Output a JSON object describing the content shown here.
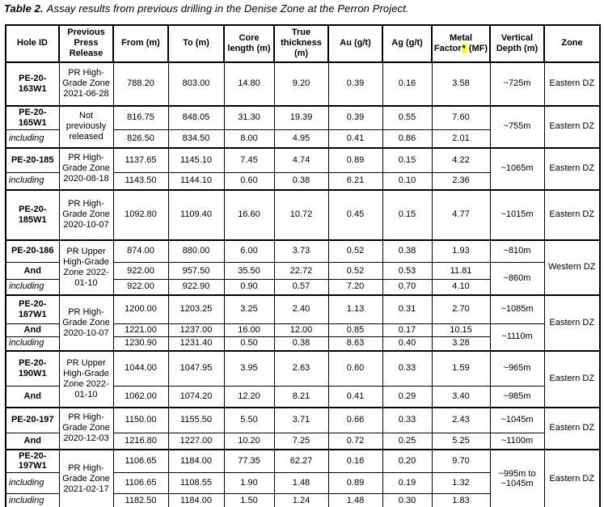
{
  "title": {
    "label": "Table 2.",
    "text": "Assay results from previous drilling in the Denise Zone at the Perron Project."
  },
  "table": {
    "highlight_color": "#ffff00",
    "headers": [
      "Hole ID",
      "Previous Press Release",
      "From (m)",
      "To (m)",
      "Core length (m)",
      "True thickness (m)",
      "Au (g/t)",
      "Ag (g/t)",
      {
        "label": "Metal Factor",
        "star": "*",
        "unit": "(MF)"
      },
      "Vertical Depth (m)",
      "Zone"
    ],
    "rows": [
      {
        "group": true,
        "h": 54,
        "cells": [
          {
            "t": "PE-20-163W1",
            "k": "hole"
          },
          {
            "t": "PR High-Grade Zone 2021-06-28",
            "k": "pr"
          },
          {
            "t": "788.20",
            "k": "num"
          },
          {
            "t": "803.00",
            "k": "num"
          },
          {
            "t": "14.80",
            "k": "num"
          },
          {
            "t": "9.20",
            "k": "num"
          },
          {
            "t": "0.39",
            "k": "num"
          },
          {
            "t": "0.16",
            "k": "num"
          },
          {
            "t": "3.58",
            "k": "num"
          },
          {
            "t": "~725m",
            "k": "depth"
          },
          {
            "t": "Eastern DZ",
            "k": "zone"
          }
        ]
      },
      {
        "group": true,
        "h": 30,
        "cells": [
          {
            "t": "PE-20-165W1",
            "k": "hole"
          },
          {
            "t": "Not previously released",
            "k": "pr",
            "rs": 2
          },
          {
            "t": "816.75",
            "k": "num"
          },
          {
            "t": "848.05",
            "k": "num"
          },
          {
            "t": "31.30",
            "k": "num"
          },
          {
            "t": "19.39",
            "k": "num"
          },
          {
            "t": "0.39",
            "k": "num"
          },
          {
            "t": "0.55",
            "k": "num"
          },
          {
            "t": "7.60",
            "k": "num"
          },
          {
            "t": "~755m",
            "k": "depth",
            "rs": 2
          },
          {
            "t": "Eastern DZ",
            "k": "zone",
            "rs": 2
          }
        ]
      },
      {
        "group": false,
        "h": 22,
        "cells": [
          {
            "t": "including",
            "k": "incl"
          },
          {
            "t": "826.50",
            "k": "num"
          },
          {
            "t": "834.50",
            "k": "num"
          },
          {
            "t": "8.00",
            "k": "num"
          },
          {
            "t": "4.95",
            "k": "num"
          },
          {
            "t": "0.41",
            "k": "num"
          },
          {
            "t": "0.86",
            "k": "num"
          },
          {
            "t": "2.01",
            "k": "num"
          }
        ]
      },
      {
        "group": true,
        "h": 31,
        "cells": [
          {
            "t": "PE-20-185",
            "k": "hole"
          },
          {
            "t": "PR High-Grade Zone 2020-08-18",
            "k": "pr",
            "rs": 2
          },
          {
            "t": "1137.65",
            "k": "num"
          },
          {
            "t": "1145.10",
            "k": "num"
          },
          {
            "t": "7.45",
            "k": "num"
          },
          {
            "t": "4.74",
            "k": "num"
          },
          {
            "t": "0.89",
            "k": "num"
          },
          {
            "t": "0.15",
            "k": "num"
          },
          {
            "t": "4.22",
            "k": "num"
          },
          {
            "t": "~1065m",
            "k": "depth",
            "rs": 2
          },
          {
            "t": "Eastern DZ",
            "k": "zone",
            "rs": 2
          }
        ]
      },
      {
        "group": false,
        "h": 21,
        "cells": [
          {
            "t": "including",
            "k": "incl"
          },
          {
            "t": "1143.50",
            "k": "num"
          },
          {
            "t": "1144.10",
            "k": "num"
          },
          {
            "t": "0.60",
            "k": "num"
          },
          {
            "t": "0.38",
            "k": "num"
          },
          {
            "t": "6.21",
            "k": "num"
          },
          {
            "t": "0.10",
            "k": "num"
          },
          {
            "t": "2.36",
            "k": "num"
          }
        ]
      },
      {
        "group": true,
        "h": 62,
        "cells": [
          {
            "t": "PE-20-185W1",
            "k": "hole"
          },
          {
            "t": "PR High-Grade Zone 2020-10-07",
            "k": "pr"
          },
          {
            "t": "1092.80",
            "k": "num"
          },
          {
            "t": "1109.40",
            "k": "num"
          },
          {
            "t": "16.60",
            "k": "num"
          },
          {
            "t": "10.72",
            "k": "num"
          },
          {
            "t": "0.45",
            "k": "num"
          },
          {
            "t": "0.15",
            "k": "num"
          },
          {
            "t": "4.77",
            "k": "num"
          },
          {
            "t": "~1015m",
            "k": "depth"
          },
          {
            "t": "Eastern DZ",
            "k": "zone"
          }
        ]
      },
      {
        "group": true,
        "h": 28,
        "cells": [
          {
            "t": "PE-20-186",
            "k": "hole"
          },
          {
            "t": "PR Upper High-Grade Zone 2022-01-10",
            "k": "pr",
            "rs": 3
          },
          {
            "t": "874.00",
            "k": "num"
          },
          {
            "t": "880.00",
            "k": "num"
          },
          {
            "t": "6.00",
            "k": "num"
          },
          {
            "t": "3.73",
            "k": "num"
          },
          {
            "t": "0.52",
            "k": "num"
          },
          {
            "t": "0.38",
            "k": "num"
          },
          {
            "t": "1.93",
            "k": "num"
          },
          {
            "t": "~810m",
            "k": "depth"
          },
          {
            "t": "Western DZ",
            "k": "zone",
            "rs": 3
          }
        ]
      },
      {
        "group": false,
        "h": 21,
        "cells": [
          {
            "t": "And",
            "k": "and"
          },
          {
            "t": "922.00",
            "k": "num"
          },
          {
            "t": "957.50",
            "k": "num"
          },
          {
            "t": "35.50",
            "k": "num"
          },
          {
            "t": "22.72",
            "k": "num"
          },
          {
            "t": "0.52",
            "k": "num"
          },
          {
            "t": "0.53",
            "k": "num"
          },
          {
            "t": "11.81",
            "k": "num"
          },
          {
            "t": "~860m",
            "k": "depth",
            "rs": 2
          }
        ]
      },
      {
        "group": false,
        "h": 19,
        "cells": [
          {
            "t": "including",
            "k": "incl"
          },
          {
            "t": "922.00",
            "k": "num"
          },
          {
            "t": "922.90",
            "k": "num"
          },
          {
            "t": "0.90",
            "k": "num"
          },
          {
            "t": "0.57",
            "k": "num"
          },
          {
            "t": "7.20",
            "k": "num"
          },
          {
            "t": "0.70",
            "k": "num"
          },
          {
            "t": "4.10",
            "k": "num"
          }
        ]
      },
      {
        "group": true,
        "h": 36,
        "cells": [
          {
            "t": "PE-20-187W1",
            "k": "hole"
          },
          {
            "t": "PR High-Grade Zone 2020-10-07",
            "k": "pr",
            "rs": 3
          },
          {
            "t": "1200.00",
            "k": "num"
          },
          {
            "t": "1203.25",
            "k": "num"
          },
          {
            "t": "3.25",
            "k": "num"
          },
          {
            "t": "2.40",
            "k": "num"
          },
          {
            "t": "1.13",
            "k": "num"
          },
          {
            "t": "0.31",
            "k": "num"
          },
          {
            "t": "2.70",
            "k": "num"
          },
          {
            "t": "~1085m",
            "k": "depth"
          },
          {
            "t": "Eastern DZ",
            "k": "zone",
            "rs": 3
          }
        ]
      },
      {
        "group": false,
        "h": 16,
        "cells": [
          {
            "t": "And",
            "k": "and"
          },
          {
            "t": "1221.00",
            "k": "num"
          },
          {
            "t": "1237.00",
            "k": "num"
          },
          {
            "t": "16.00",
            "k": "num"
          },
          {
            "t": "12.00",
            "k": "num"
          },
          {
            "t": "0.85",
            "k": "num"
          },
          {
            "t": "0.17",
            "k": "num"
          },
          {
            "t": "10.15",
            "k": "num"
          },
          {
            "t": "~1110m",
            "k": "depth",
            "rs": 2
          }
        ]
      },
      {
        "group": false,
        "h": 17,
        "cells": [
          {
            "t": "including",
            "k": "incl"
          },
          {
            "t": "1230.90",
            "k": "num"
          },
          {
            "t": "1231.40",
            "k": "num"
          },
          {
            "t": "0.50",
            "k": "num"
          },
          {
            "t": "0.38",
            "k": "num"
          },
          {
            "t": "8.63",
            "k": "num"
          },
          {
            "t": "0.40",
            "k": "num"
          },
          {
            "t": "3.28",
            "k": "num"
          }
        ]
      },
      {
        "group": true,
        "h": 44,
        "cells": [
          {
            "t": "PE-20-190W1",
            "k": "hole"
          },
          {
            "t": "PR Upper High-Grade Zone 2022-01-10",
            "k": "pr",
            "rs": 2
          },
          {
            "t": "1044.00",
            "k": "num"
          },
          {
            "t": "1047.95",
            "k": "num"
          },
          {
            "t": "3.95",
            "k": "num"
          },
          {
            "t": "2.63",
            "k": "num"
          },
          {
            "t": "0.60",
            "k": "num"
          },
          {
            "t": "0.33",
            "k": "num"
          },
          {
            "t": "1.59",
            "k": "num"
          },
          {
            "t": "~965m",
            "k": "depth"
          },
          {
            "t": "Eastern DZ",
            "k": "zone",
            "rs": 2
          }
        ]
      },
      {
        "group": false,
        "h": 26,
        "cells": [
          {
            "t": "And",
            "k": "and"
          },
          {
            "t": "1062.00",
            "k": "num"
          },
          {
            "t": "1074.20",
            "k": "num"
          },
          {
            "t": "12.20",
            "k": "num"
          },
          {
            "t": "8.21",
            "k": "num"
          },
          {
            "t": "0.41",
            "k": "num"
          },
          {
            "t": "0.29",
            "k": "num"
          },
          {
            "t": "3.40",
            "k": "num"
          },
          {
            "t": "~985m",
            "k": "depth"
          }
        ]
      },
      {
        "group": true,
        "h": 32,
        "cells": [
          {
            "t": "PE-20-197",
            "k": "hole"
          },
          {
            "t": "PR High-Grade Zone 2020-12-03",
            "k": "pr",
            "rs": 2
          },
          {
            "t": "1150.00",
            "k": "num"
          },
          {
            "t": "1155.50",
            "k": "num"
          },
          {
            "t": "5.50",
            "k": "num"
          },
          {
            "t": "3.71",
            "k": "num"
          },
          {
            "t": "0.66",
            "k": "num"
          },
          {
            "t": "0.33",
            "k": "num"
          },
          {
            "t": "2.43",
            "k": "num"
          },
          {
            "t": "~1045m",
            "k": "depth"
          },
          {
            "t": "Eastern DZ",
            "k": "zone",
            "rs": 2
          }
        ]
      },
      {
        "group": false,
        "h": 20,
        "cells": [
          {
            "t": "And",
            "k": "and"
          },
          {
            "t": "1216.80",
            "k": "num"
          },
          {
            "t": "1227.00",
            "k": "num"
          },
          {
            "t": "10.20",
            "k": "num"
          },
          {
            "t": "7.25",
            "k": "num"
          },
          {
            "t": "0.72",
            "k": "num"
          },
          {
            "t": "0.25",
            "k": "num"
          },
          {
            "t": "5.25",
            "k": "num"
          },
          {
            "t": "~1100m",
            "k": "depth"
          }
        ]
      },
      {
        "group": true,
        "h": 26,
        "cells": [
          {
            "t": "PE-20-197W1",
            "k": "hole"
          },
          {
            "t": "PR High-Grade Zone 2021-02-17",
            "k": "pr",
            "rs": 3
          },
          {
            "t": "1106.65",
            "k": "num"
          },
          {
            "t": "1184.00",
            "k": "num"
          },
          {
            "t": "77.35",
            "k": "num"
          },
          {
            "t": "62.27",
            "k": "num"
          },
          {
            "t": "0.16",
            "k": "num"
          },
          {
            "t": "0.20",
            "k": "num"
          },
          {
            "t": "9.70",
            "k": "num"
          },
          {
            "t": "~995m to ~1045m",
            "k": "depth",
            "rs": 3
          },
          {
            "t": "Eastern DZ",
            "k": "zone",
            "rs": 3
          }
        ]
      },
      {
        "group": false,
        "h": 26,
        "cells": [
          {
            "t": "including",
            "k": "incl"
          },
          {
            "t": "1106.65",
            "k": "num"
          },
          {
            "t": "1108.55",
            "k": "num"
          },
          {
            "t": "1.90",
            "k": "num"
          },
          {
            "t": "1.48",
            "k": "num"
          },
          {
            "t": "0.89",
            "k": "num"
          },
          {
            "t": "0.19",
            "k": "num"
          },
          {
            "t": "1.32",
            "k": "num"
          }
        ]
      },
      {
        "group": false,
        "h": 19,
        "cells": [
          {
            "t": "including",
            "k": "incl"
          },
          {
            "t": "1182.50",
            "k": "num"
          },
          {
            "t": "1184.00",
            "k": "num"
          },
          {
            "t": "1.50",
            "k": "num"
          },
          {
            "t": "1.24",
            "k": "num"
          },
          {
            "t": "1.48",
            "k": "num"
          },
          {
            "t": "0.30",
            "k": "num"
          },
          {
            "t": "1.83",
            "k": "num"
          }
        ]
      },
      {
        "group": true,
        "h": 20,
        "cells": [
          {
            "t": "",
            "k": "hole"
          },
          {
            "t": "",
            "k": "pr"
          },
          {
            "t": "",
            "k": "num"
          },
          {
            "t": "",
            "k": "num"
          },
          {
            "t": "",
            "k": "num"
          },
          {
            "t": "",
            "k": "num"
          },
          {
            "t": "",
            "k": "num"
          },
          {
            "t": "",
            "k": "num"
          },
          {
            "t": "",
            "k": "num"
          },
          {
            "t": "",
            "k": "depth"
          },
          {
            "t": "",
            "k": "zone"
          }
        ]
      }
    ]
  }
}
